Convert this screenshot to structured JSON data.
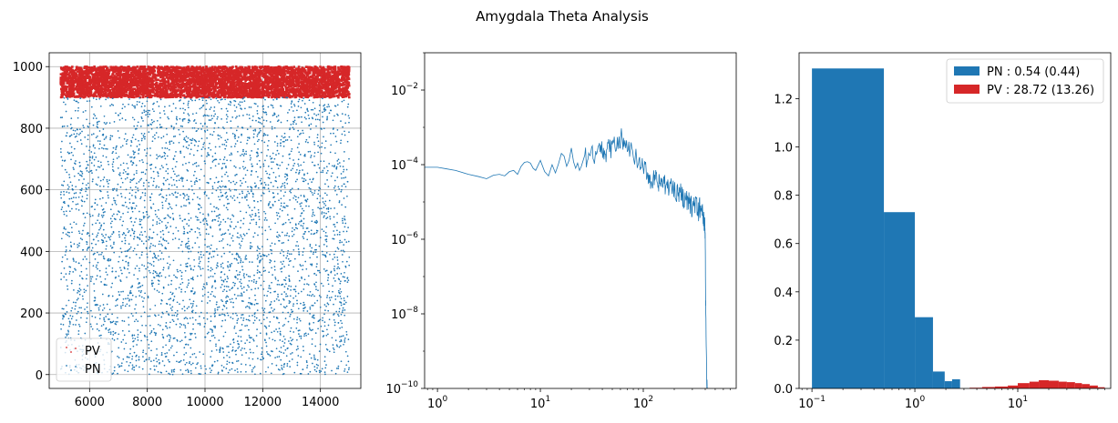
{
  "figure": {
    "title": "Amygdala Theta Analysis"
  },
  "colors": {
    "PN": "#1f77b4",
    "PV": "#d62728",
    "grid": "#b0b0b0"
  },
  "chart_data": [
    {
      "type": "scatter",
      "title": "",
      "xlabel": "",
      "ylabel": "",
      "xlim": [
        4600,
        15400
      ],
      "ylim": [
        -45,
        1045
      ],
      "xticks": [
        6000,
        8000,
        10000,
        12000,
        14000
      ],
      "yticks": [
        0,
        200,
        400,
        600,
        800,
        1000
      ],
      "grid": true,
      "legend": {
        "placement": "lower-left",
        "entries": [
          "PV",
          "PN"
        ]
      },
      "series": [
        {
          "name": "PV",
          "color": "#d62728",
          "x_range": [
            5000,
            15000
          ],
          "y_range": [
            900,
            1000
          ],
          "n_points": 5000
        },
        {
          "name": "PN",
          "color": "#1f77b4",
          "x_range": [
            5000,
            15000
          ],
          "y_range": [
            0,
            900
          ],
          "n_points": 4000
        }
      ]
    },
    {
      "type": "line",
      "title": "",
      "xlabel": "",
      "ylabel": "",
      "xscale": "log",
      "yscale": "log",
      "xlim": [
        0.75,
        800
      ],
      "ylim": [
        1e-10,
        0.1
      ],
      "xticks": [
        {
          "mant": "10",
          "exp": "0"
        },
        {
          "mant": "10",
          "exp": "1"
        },
        {
          "mant": "10",
          "exp": "2"
        }
      ],
      "yticks": [
        {
          "mant": "10",
          "exp": "−2"
        },
        {
          "mant": "10",
          "exp": "−4"
        },
        {
          "mant": "10",
          "exp": "−6"
        },
        {
          "mant": "10",
          "exp": "−8"
        },
        {
          "mant": "10",
          "exp": "−10"
        }
      ],
      "grid": false,
      "series": [
        {
          "color": "#1f77b4",
          "x": [
            0.75,
            1,
            1.2,
            1.5,
            2,
            2.5,
            3,
            3.5,
            4,
            4.5,
            5,
            5.5,
            6,
            6.5,
            7,
            7.5,
            8,
            8.5,
            9,
            10,
            11,
            12,
            13,
            14,
            15,
            16,
            17,
            18,
            19,
            20,
            21,
            22,
            23,
            24,
            25,
            27,
            29,
            31,
            33,
            35,
            37,
            39,
            41,
            43,
            45,
            47,
            50,
            53,
            56,
            59,
            62,
            65,
            70,
            75,
            80,
            90,
            100,
            110,
            120,
            130,
            140,
            150,
            165,
            180,
            200,
            220,
            240,
            260,
            280,
            300,
            320,
            340,
            360,
            380,
            395,
            400,
            402,
            405,
            410,
            415,
            420
          ],
          "y": [
            8.5e-05,
            8.5e-05,
            7.8e-05,
            7e-05,
            5.5e-05,
            4.8e-05,
            4.2e-05,
            5.2e-05,
            5.5e-05,
            5e-05,
            6.5e-05,
            7e-05,
            5.5e-05,
            9e-05,
            0.000115,
            0.00012,
            0.00011,
            8e-05,
            7e-05,
            0.00013,
            6.5e-05,
            5e-05,
            0.0001,
            6e-05,
            0.000105,
            0.0002,
            0.00017,
            9e-05,
            0.00013,
            0.00028,
            0.00012,
            8e-05,
            0.00011,
            7e-05,
            9e-05,
            0.00018,
            0.00014,
            0.00022,
            0.00013,
            0.00019,
            0.00033,
            0.0002,
            0.00028,
            0.00019,
            0.0004,
            0.00022,
            0.00035,
            0.0003,
            0.00055,
            0.00028,
            0.0006,
            0.0003,
            0.00022,
            0.00028,
            0.00016,
            0.00011,
            7.5e-05,
            6e-05,
            3.5e-05,
            4e-05,
            2.8e-05,
            3.5e-05,
            2.5e-05,
            2.8e-05,
            2.2e-05,
            1.8e-05,
            1.5e-05,
            1.1e-05,
            9e-06,
            7e-06,
            1e-05,
            5e-06,
            8e-06,
            4e-06,
            3e-06,
            1e-06,
            1e-07,
            1e-08,
            1e-09,
            1e-10,
            1e-10
          ]
        }
      ]
    },
    {
      "type": "bar",
      "title": "",
      "xlabel": "",
      "ylabel": "",
      "xscale": "log",
      "xlim": [
        0.075,
        80
      ],
      "ylim": [
        0,
        1.39
      ],
      "xticks": [
        {
          "mant": "10",
          "exp": "−1"
        },
        {
          "mant": "10",
          "exp": "0"
        },
        {
          "mant": "10",
          "exp": "1"
        }
      ],
      "yticks": [
        "0.0",
        "0.2",
        "0.4",
        "0.6",
        "0.8",
        "1.0",
        "1.2"
      ],
      "grid": false,
      "legend": {
        "placement": "top-right",
        "entries": [
          "PN : 0.54 (0.44)",
          "PV : 28.72 (13.26)"
        ]
      },
      "series": [
        {
          "name": "PN : 0.54 (0.44)",
          "color": "#1f77b4",
          "bins": [
            [
              0.1,
              0.5,
              1.325
            ],
            [
              0.5,
              1.0,
              0.73
            ],
            [
              1.0,
              1.5,
              0.295
            ],
            [
              1.5,
              1.95,
              0.07
            ],
            [
              1.95,
              2.3,
              0.03
            ],
            [
              2.3,
              2.75,
              0.038
            ]
          ]
        },
        {
          "name": "PV : 28.72 (13.26)",
          "color": "#d62728",
          "bins": [
            [
              3.4,
              4.5,
              0.003
            ],
            [
              4.5,
              6,
              0.006
            ],
            [
              6,
              8,
              0.008
            ],
            [
              8,
              10,
              0.012
            ],
            [
              10,
              13,
              0.022
            ],
            [
              13,
              16,
              0.028
            ],
            [
              16,
              20,
              0.034
            ],
            [
              20,
              25,
              0.032
            ],
            [
              25,
              30,
              0.028
            ],
            [
              30,
              36,
              0.026
            ],
            [
              36,
              42,
              0.022
            ],
            [
              42,
              50,
              0.018
            ],
            [
              50,
              60,
              0.012
            ],
            [
              60,
              70,
              0.005
            ]
          ]
        }
      ]
    }
  ]
}
